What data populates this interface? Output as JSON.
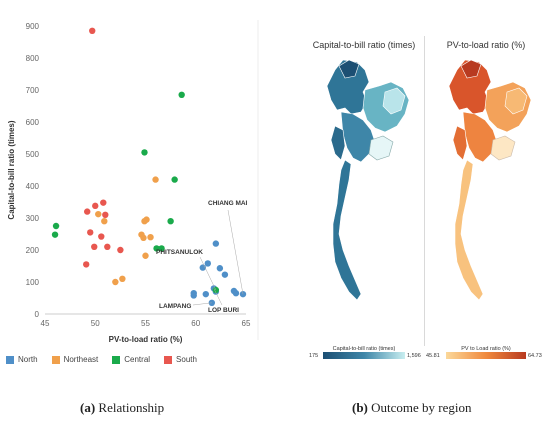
{
  "chart_data": [
    {
      "type": "scatter",
      "xlabel": "PV-to-load ratio (%)",
      "ylabel": "Capital-to-bill ratio (times)",
      "xlim": [
        45,
        65
      ],
      "ylim": [
        0,
        900
      ],
      "x_ticks": [
        "45",
        "50",
        "55",
        "60",
        "65"
      ],
      "y_ticks": [
        "0",
        "100",
        "200",
        "300",
        "400",
        "500",
        "600",
        "700",
        "800",
        "900"
      ],
      "grid": false,
      "legend_position": "bottom",
      "series": [
        {
          "name": "North",
          "color": "#4f8fc8",
          "points": [
            {
              "x": 59.8,
              "y": 65
            },
            {
              "x": 59.8,
              "y": 58
            },
            {
              "x": 60.7,
              "y": 145
            },
            {
              "x": 61.2,
              "y": 158
            },
            {
              "x": 61.0,
              "y": 62
            },
            {
              "x": 61.8,
              "y": 80
            },
            {
              "x": 62.0,
              "y": 220
            },
            {
              "x": 62.4,
              "y": 143
            },
            {
              "x": 62.0,
              "y": 70
            },
            {
              "x": 62.9,
              "y": 123
            },
            {
              "x": 61.6,
              "y": 35
            },
            {
              "x": 64.0,
              "y": 65
            },
            {
              "x": 64.7,
              "y": 62
            },
            {
              "x": 63.8,
              "y": 72
            }
          ]
        },
        {
          "name": "Northeast",
          "color": "#f0a04b",
          "points": [
            {
              "x": 56.0,
              "y": 420
            },
            {
              "x": 54.9,
              "y": 290
            },
            {
              "x": 55.1,
              "y": 295
            },
            {
              "x": 54.6,
              "y": 248
            },
            {
              "x": 55.5,
              "y": 240
            },
            {
              "x": 55.0,
              "y": 182
            },
            {
              "x": 52.7,
              "y": 110
            },
            {
              "x": 52.0,
              "y": 100
            },
            {
              "x": 50.3,
              "y": 312
            },
            {
              "x": 50.9,
              "y": 290
            },
            {
              "x": 54.8,
              "y": 238
            }
          ]
        },
        {
          "name": "Central",
          "color": "#1aaa4b",
          "points": [
            {
              "x": 58.6,
              "y": 685
            },
            {
              "x": 54.9,
              "y": 505
            },
            {
              "x": 57.9,
              "y": 420
            },
            {
              "x": 57.5,
              "y": 290
            },
            {
              "x": 56.1,
              "y": 205
            },
            {
              "x": 56.6,
              "y": 205
            },
            {
              "x": 46.1,
              "y": 275
            },
            {
              "x": 46.0,
              "y": 248
            },
            {
              "x": 62.0,
              "y": 75
            }
          ]
        },
        {
          "name": "South",
          "color": "#e8574f",
          "points": [
            {
              "x": 49.7,
              "y": 885
            },
            {
              "x": 49.2,
              "y": 320
            },
            {
              "x": 50.0,
              "y": 338
            },
            {
              "x": 50.8,
              "y": 348
            },
            {
              "x": 49.5,
              "y": 255
            },
            {
              "x": 50.6,
              "y": 242
            },
            {
              "x": 49.9,
              "y": 210
            },
            {
              "x": 51.2,
              "y": 210
            },
            {
              "x": 52.5,
              "y": 200
            },
            {
              "x": 49.1,
              "y": 155
            },
            {
              "x": 51.0,
              "y": 310
            }
          ]
        }
      ],
      "annotations": [
        {
          "label": "CHIANG MAI",
          "x": 64.7,
          "y": 62
        },
        {
          "label": "PHITSANULOK",
          "x": 62.0,
          "y": 75
        },
        {
          "label": "LAMPANG",
          "x": 61.6,
          "y": 35
        },
        {
          "label": "LOP BURI",
          "x": 61.8,
          "y": 80
        }
      ]
    },
    {
      "type": "heatmap",
      "title": "Capital-to-bill ratio (times)",
      "legend_title": "Capital-to-bill ratio (times)",
      "range": [
        175,
        1596
      ],
      "range_labels": [
        "175",
        "1,596"
      ],
      "colors": [
        "#1c4f73",
        "#3e86a8",
        "#c8eef0"
      ]
    },
    {
      "type": "heatmap",
      "title": "PV-to-load ratio (%)",
      "legend_title": "PV to Load ratio (%)",
      "range": [
        45.81,
        64.73
      ],
      "range_labels": [
        "45.81",
        "64.73"
      ],
      "colors": [
        "#fbd89a",
        "#f08a3e",
        "#b83a20"
      ]
    }
  ],
  "captions": {
    "a_label": "(a)",
    "a_text": " Relationship",
    "b_label": "(b)",
    "b_text": " Outcome by region"
  }
}
